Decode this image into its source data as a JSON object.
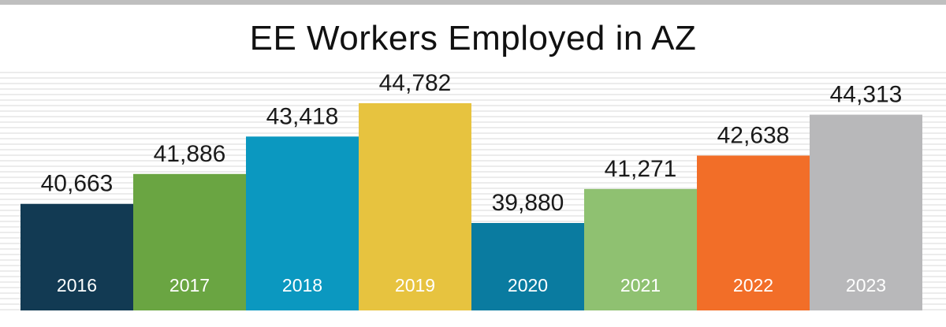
{
  "chart_data": {
    "type": "bar",
    "title": "EE Workers Employed in AZ",
    "xlabel": "",
    "ylabel": "",
    "categories": [
      "2016",
      "2017",
      "2018",
      "2019",
      "2020",
      "2021",
      "2022",
      "2023"
    ],
    "values": [
      40663,
      41886,
      43418,
      44782,
      39880,
      41271,
      42638,
      44313
    ],
    "value_labels": [
      "40,663",
      "41,886",
      "43,418",
      "44,782",
      "39,880",
      "41,271",
      "42,638",
      "44,313"
    ],
    "colors": [
      "#123a53",
      "#6aa542",
      "#0b98c0",
      "#e7c33f",
      "#0a7ba0",
      "#8fc171",
      "#f26e28",
      "#b8b8ba"
    ],
    "axis_visible": false,
    "grid": true,
    "legend": "none",
    "category_labels_inside_bars": true
  }
}
